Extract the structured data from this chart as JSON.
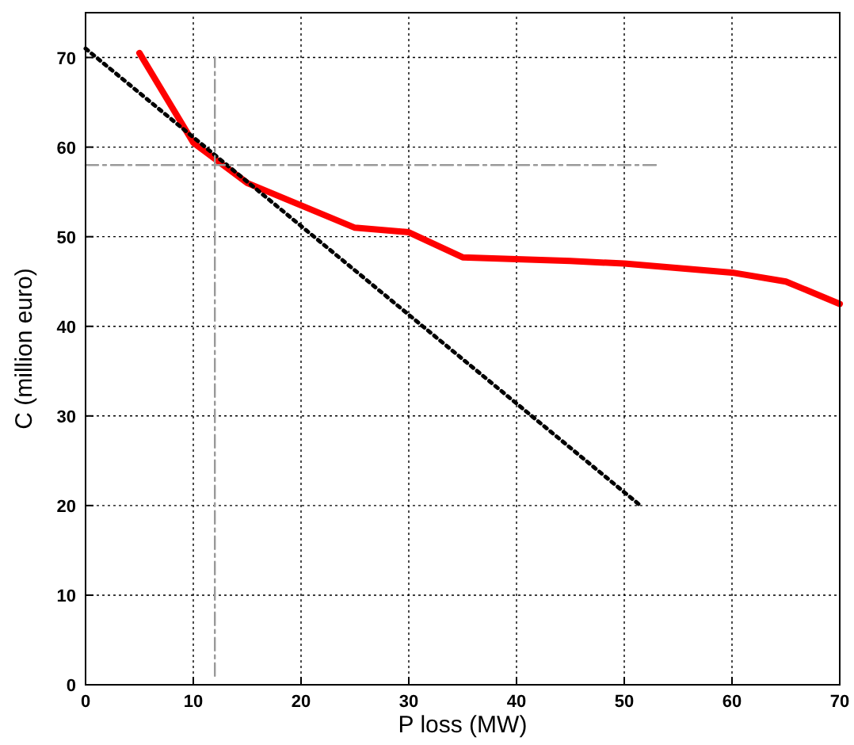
{
  "chart_data": {
    "type": "line",
    "xlabel": "P loss (MW)",
    "ylabel": "C (million euro)",
    "xlim": [
      0,
      70
    ],
    "ylim": [
      0,
      75
    ],
    "xticks": [
      0,
      10,
      20,
      30,
      40,
      50,
      60,
      70
    ],
    "yticks": [
      0,
      10,
      20,
      30,
      40,
      50,
      60,
      70
    ],
    "grid": true,
    "series": [
      {
        "color": "#ff0000",
        "line_style": "solid",
        "x": [
          5,
          10,
          15,
          20,
          25,
          30,
          35,
          40,
          45,
          50,
          55,
          60,
          65,
          70
        ],
        "values": [
          70.5,
          60.5,
          56,
          53.5,
          51,
          50.5,
          47.7,
          47.5,
          47.3,
          47,
          46.5,
          46,
          45,
          42.5
        ]
      },
      {
        "color": "#000000",
        "line_style": "dotted",
        "x": [
          0,
          51.5
        ],
        "values": [
          71,
          20
        ]
      },
      {
        "color": "#999999",
        "line_style": "dashed",
        "x": [
          12,
          12
        ],
        "values": [
          1,
          70
        ]
      },
      {
        "color": "#999999",
        "line_style": "dashed",
        "x": [
          0,
          53
        ],
        "values": [
          58,
          58
        ]
      }
    ]
  }
}
